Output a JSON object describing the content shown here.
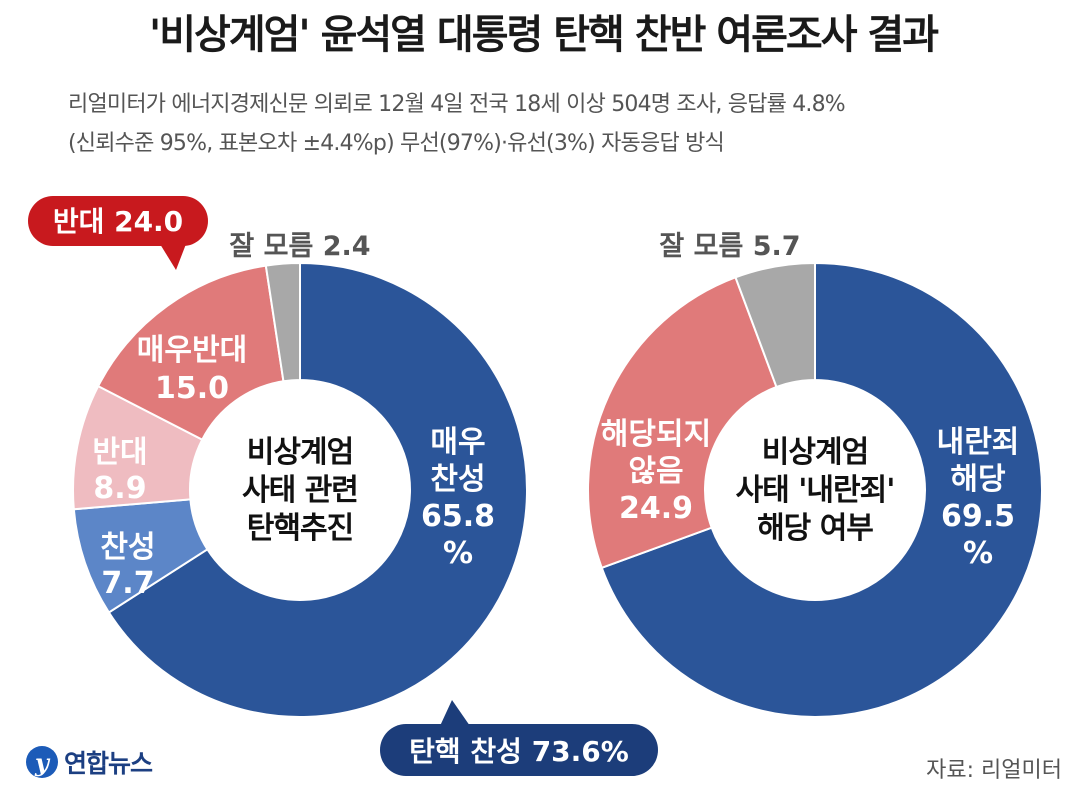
{
  "title": "'비상계엄' 윤석열 대통령 탄핵 찬반 여론조사 결과",
  "subtitle_line1": "리얼미터가 에너지경제신문 의뢰로 12월 4일 전국 18세 이상 504명 조사, 응답률 4.8%",
  "subtitle_line2": "(신뢰수준 95%, 표본오차 ±4.4%p) 무선(97%)·유선(3%) 자동응답 방식",
  "colors": {
    "strong_blue": "#2b5599",
    "light_blue": "#5c86c8",
    "light_pink": "#efbcc1",
    "salmon": "#e07a7a",
    "gray": "#a8a8a8",
    "callout_red": "#c8191e",
    "callout_navy": "#1c3d7a"
  },
  "chart_data": [
    {
      "type": "pie",
      "title_lines": [
        "비상계엄",
        "사태 관련",
        "탄핵추진"
      ],
      "slices": [
        {
          "name": "매우 찬성",
          "value": 65.8,
          "label_lines": [
            "매우",
            "찬성",
            "65.8",
            "%"
          ],
          "color": "strong_blue"
        },
        {
          "name": "찬성",
          "value": 7.7,
          "label_lines": [
            "찬성",
            "7.7"
          ],
          "color": "light_blue"
        },
        {
          "name": "반대",
          "value": 8.9,
          "label_lines": [
            "반대",
            "8.9"
          ],
          "color": "light_pink"
        },
        {
          "name": "매우반대",
          "value": 15.0,
          "label_lines": [
            "매우반대",
            "15.0"
          ],
          "color": "salmon"
        },
        {
          "name": "잘 모름",
          "value": 2.4,
          "label_lines": [
            "잘 모름 2.4"
          ],
          "color": "gray"
        }
      ],
      "callouts": [
        {
          "text": "반대 24.0",
          "color": "callout_red"
        },
        {
          "text": "탄핵 찬성 73.6%",
          "color": "callout_navy"
        }
      ]
    },
    {
      "type": "pie",
      "title_lines": [
        "비상계엄",
        "사태 '내란죄'",
        "해당 여부"
      ],
      "slices": [
        {
          "name": "내란죄 해당",
          "value": 69.5,
          "label_lines": [
            "내란죄",
            "해당",
            "69.5",
            "%"
          ],
          "color": "strong_blue"
        },
        {
          "name": "해당되지 않음",
          "value": 24.9,
          "label_lines": [
            "해당되지",
            "않음",
            "24.9"
          ],
          "color": "salmon"
        },
        {
          "name": "잘 모름",
          "value": 5.7,
          "label_lines": [
            "잘 모름 5.7"
          ],
          "color": "gray"
        }
      ]
    }
  ],
  "logo_text": "연합뉴스",
  "source": "자료: 리얼미터"
}
